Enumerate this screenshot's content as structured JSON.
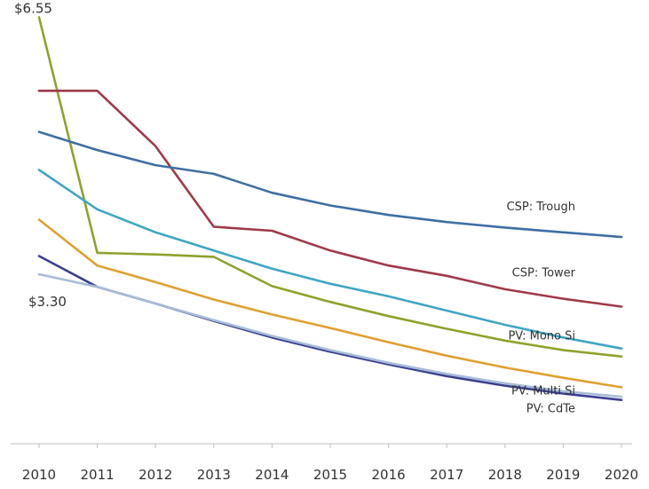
{
  "chart_data": {
    "type": "line",
    "title": "",
    "xlabel": "",
    "ylabel": "",
    "categories": [
      "2010",
      "2011",
      "2012",
      "2013",
      "2014",
      "2015",
      "2016",
      "2017",
      "2018",
      "2019",
      "2020"
    ],
    "x": [
      2010,
      2011,
      2012,
      2013,
      2014,
      2015,
      2016,
      2017,
      2018,
      2019,
      2020
    ],
    "xlim": [
      2010,
      2020
    ],
    "ylim": [
      1.1,
      6.6
    ],
    "grid": false,
    "legend": "none",
    "annotations": [
      {
        "text": "$6.55",
        "x": 2010,
        "y": 6.55
      },
      {
        "text": "$3.30",
        "x": 2010,
        "y": 3.3
      }
    ],
    "series": [
      {
        "name": "CSP: Trough",
        "color": "#3f6fa3",
        "values": [
          5.1,
          4.87,
          4.68,
          4.57,
          4.33,
          4.17,
          4.05,
          3.96,
          3.89,
          3.83,
          3.77
        ]
      },
      {
        "name": "CSP: Tower",
        "color": "#a0394a",
        "values": [
          5.62,
          5.62,
          4.92,
          3.9,
          3.85,
          3.6,
          3.41,
          3.28,
          3.11,
          2.99,
          2.89
        ]
      },
      {
        "name": "PV: Mono Si",
        "color": "#3ea6c3",
        "values": [
          4.62,
          4.12,
          3.83,
          3.6,
          3.37,
          3.18,
          3.02,
          2.84,
          2.66,
          2.5,
          2.36
        ]
      },
      {
        "name": "",
        "color": "#8da32c",
        "values": [
          6.55,
          3.57,
          3.55,
          3.52,
          3.15,
          2.95,
          2.77,
          2.61,
          2.46,
          2.34,
          2.26
        ]
      },
      {
        "name": "PV: Multi Si",
        "color": "#e0a030",
        "values": [
          3.99,
          3.41,
          3.2,
          2.98,
          2.79,
          2.62,
          2.44,
          2.27,
          2.12,
          1.99,
          1.87
        ]
      },
      {
        "name": "",
        "color": "#a8bcd6",
        "values": [
          3.3,
          3.14,
          2.93,
          2.72,
          2.52,
          2.34,
          2.18,
          2.04,
          1.92,
          1.82,
          1.75
        ]
      },
      {
        "name": "PV: CdTe",
        "color": "#3d3f91",
        "values": [
          3.53,
          3.14,
          2.93,
          2.71,
          2.5,
          2.32,
          2.16,
          2.01,
          1.89,
          1.79,
          1.71
        ]
      }
    ]
  }
}
